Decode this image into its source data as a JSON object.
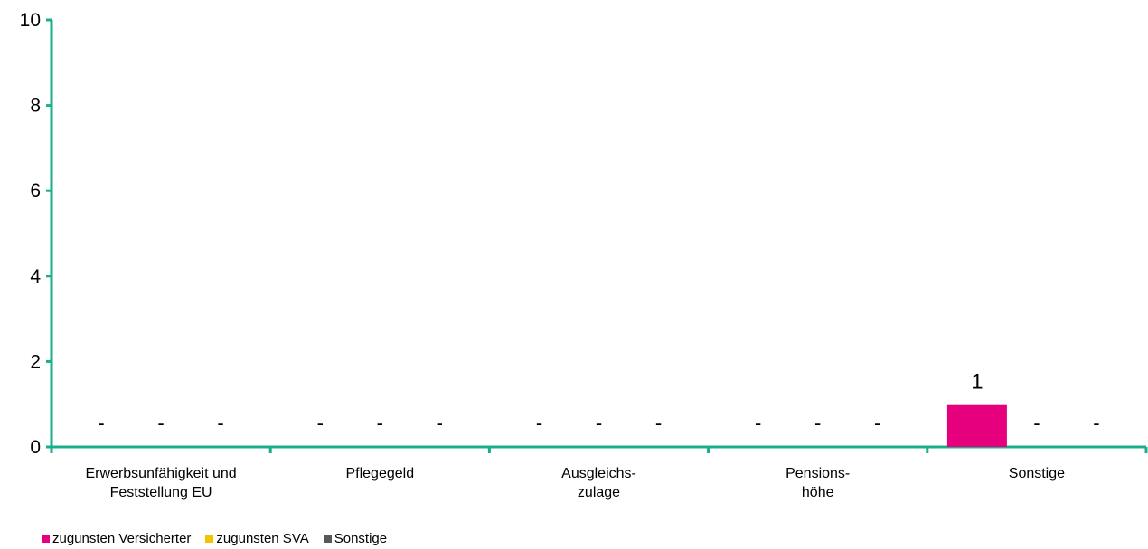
{
  "chart_data": {
    "type": "bar",
    "categories": [
      [
        "Erwerbsunfähigkeit und",
        "Feststellung EU"
      ],
      [
        "Pflegegeld"
      ],
      [
        "Ausgleichs-",
        "zulage"
      ],
      [
        "Pensions-",
        "höhe"
      ],
      [
        "Sonstige"
      ]
    ],
    "series": [
      {
        "name": "zugunsten Versicherter",
        "color": "#e6007e",
        "values": [
          0,
          0,
          0,
          0,
          1
        ],
        "labels": [
          "-",
          "-",
          "-",
          "-",
          "1"
        ]
      },
      {
        "name": "zugunsten SVA",
        "color": "#f5c400",
        "values": [
          0,
          0,
          0,
          0,
          0
        ],
        "labels": [
          "-",
          "-",
          "-",
          "-",
          "-"
        ]
      },
      {
        "name": "Sonstige",
        "color": "#595959",
        "values": [
          0,
          0,
          0,
          0,
          0
        ],
        "labels": [
          "-",
          "-",
          "-",
          "-",
          "-"
        ]
      }
    ],
    "ylim": [
      0,
      10
    ],
    "yticks": [
      "0",
      "2",
      "4",
      "6",
      "8",
      "10"
    ],
    "axis_color": "#1aaf8b",
    "legend_position": "bottom-left",
    "grid": false
  }
}
